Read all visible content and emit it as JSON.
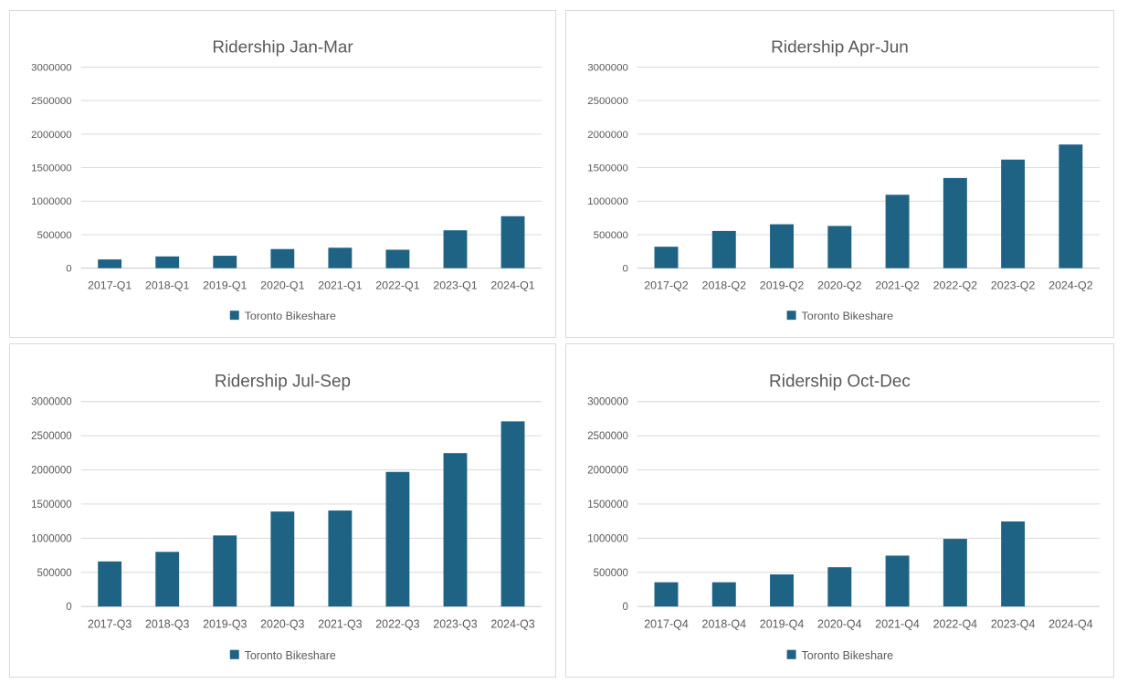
{
  "legend_label": "Toronto Bikeshare",
  "colors": {
    "bar": "#1f6384",
    "title_text": "#595959",
    "axis_text": "#595959",
    "gridline": "#d9d9d9",
    "axis_line": "#c9c9c9",
    "panel_border": "#d9d9d9",
    "background": "#ffffff"
  },
  "chart_data": [
    {
      "type": "bar",
      "title": "Ridership Jan-Mar",
      "categories": [
        "2017-Q1",
        "2018-Q1",
        "2019-Q1",
        "2020-Q1",
        "2021-Q1",
        "2022-Q1",
        "2023-Q1",
        "2024-Q1"
      ],
      "series": [
        {
          "name": "Toronto Bikeshare",
          "values": [
            130000,
            175000,
            185000,
            285000,
            305000,
            275000,
            565000,
            775000
          ]
        }
      ],
      "xlabel": "",
      "ylabel": "",
      "ylim": [
        0,
        3000000
      ],
      "y_ticks": [
        0,
        500000,
        1000000,
        1500000,
        2000000,
        2500000,
        3000000
      ],
      "grid": true,
      "legend_position": "bottom"
    },
    {
      "type": "bar",
      "title": "Ridership Apr-Jun",
      "categories": [
        "2017-Q2",
        "2018-Q2",
        "2019-Q2",
        "2020-Q2",
        "2021-Q2",
        "2022-Q2",
        "2023-Q2",
        "2024-Q2"
      ],
      "series": [
        {
          "name": "Toronto Bikeshare",
          "values": [
            320000,
            555000,
            655000,
            630000,
            1095000,
            1345000,
            1620000,
            1845000
          ]
        }
      ],
      "xlabel": "",
      "ylabel": "",
      "ylim": [
        0,
        3000000
      ],
      "y_ticks": [
        0,
        500000,
        1000000,
        1500000,
        2000000,
        2500000,
        3000000
      ],
      "grid": true,
      "legend_position": "bottom"
    },
    {
      "type": "bar",
      "title": "Ridership Jul-Sep",
      "categories": [
        "2017-Q3",
        "2018-Q3",
        "2019-Q3",
        "2020-Q3",
        "2021-Q3",
        "2022-Q3",
        "2023-Q3",
        "2024-Q3"
      ],
      "series": [
        {
          "name": "Toronto Bikeshare",
          "values": [
            660000,
            800000,
            1040000,
            1390000,
            1405000,
            1970000,
            2245000,
            2710000
          ]
        }
      ],
      "xlabel": "",
      "ylabel": "",
      "ylim": [
        0,
        3000000
      ],
      "y_ticks": [
        0,
        500000,
        1000000,
        1500000,
        2000000,
        2500000,
        3000000
      ],
      "grid": true,
      "legend_position": "bottom"
    },
    {
      "type": "bar",
      "title": "Ridership Oct-Dec",
      "categories": [
        "2017-Q4",
        "2018-Q4",
        "2019-Q4",
        "2020-Q4",
        "2021-Q4",
        "2022-Q4",
        "2023-Q4",
        "2024-Q4"
      ],
      "series": [
        {
          "name": "Toronto Bikeshare",
          "values": [
            355000,
            355000,
            470000,
            575000,
            745000,
            990000,
            1245000,
            null
          ]
        }
      ],
      "xlabel": "",
      "ylabel": "",
      "ylim": [
        0,
        3000000
      ],
      "y_ticks": [
        0,
        500000,
        1000000,
        1500000,
        2000000,
        2500000,
        3000000
      ],
      "grid": true,
      "legend_position": "bottom"
    }
  ]
}
